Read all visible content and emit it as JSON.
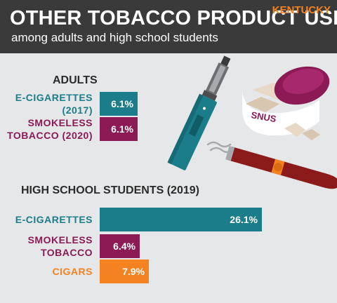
{
  "header": {
    "title": "OTHER TOBACCO PRODUCT USE",
    "subtitle": "among adults and high school students",
    "state": "KENTUCKY"
  },
  "colors": {
    "teal": "#1b7d8a",
    "maroon": "#8b1a55",
    "orange": "#f58220",
    "header_bg": "#3a3a3a",
    "background": "#e6e7e8"
  },
  "illustration": {
    "snus_label": "SNUS",
    "icons": [
      "vape-pen-icon",
      "snus-tin-icon",
      "cigar-icon",
      "smoke-icon"
    ]
  },
  "chart_data": [
    {
      "type": "bar",
      "orientation": "horizontal",
      "title": "ADULTS",
      "categories": [
        "E-CIGARETTES (2017)",
        "SMOKELESS TOBACCO (2020)"
      ],
      "category_lines": [
        [
          "E-CIGARETTES",
          "(2017)"
        ],
        [
          "SMOKELESS",
          "TOBACCO (2020)"
        ]
      ],
      "values": [
        6.1,
        6.1
      ],
      "value_labels": [
        "6.1%",
        "6.1%"
      ],
      "colors": [
        "#1b7d8a",
        "#8b1a55"
      ],
      "unit": "%"
    },
    {
      "type": "bar",
      "orientation": "horizontal",
      "title": "HIGH SCHOOL STUDENTS (2019)",
      "categories": [
        "E-CIGARETTES",
        "SMOKELESS TOBACCO",
        "CIGARS"
      ],
      "category_lines": [
        [
          "E-CIGARETTES"
        ],
        [
          "SMOKELESS",
          "TOBACCO"
        ],
        [
          "CIGARS"
        ]
      ],
      "values": [
        26.1,
        6.4,
        7.9
      ],
      "value_labels": [
        "26.1%",
        "6.4%",
        "7.9%"
      ],
      "colors": [
        "#1b7d8a",
        "#8b1a55",
        "#f58220"
      ],
      "unit": "%"
    }
  ]
}
